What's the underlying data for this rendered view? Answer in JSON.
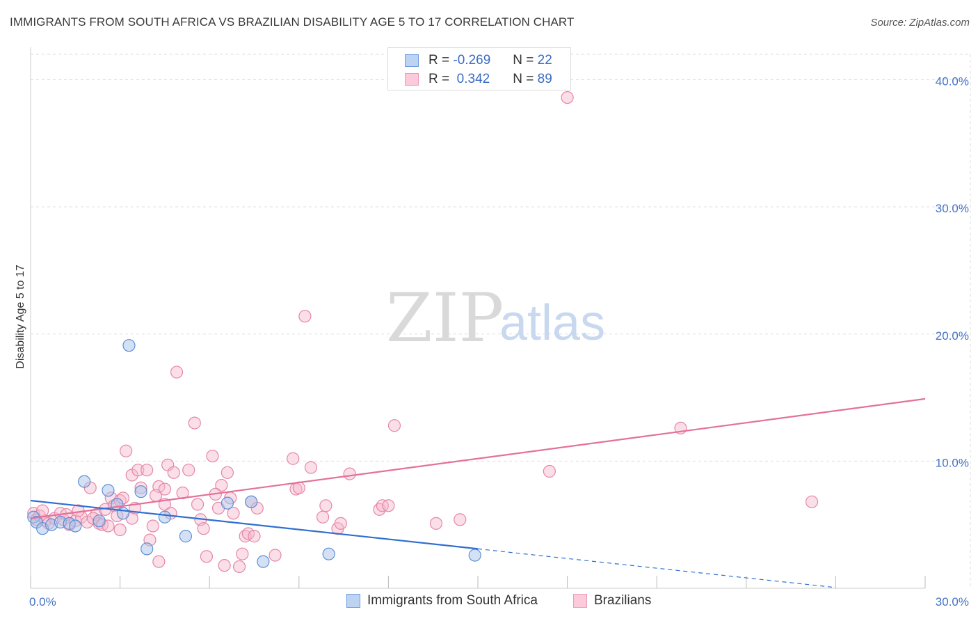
{
  "header": {
    "title": "IMMIGRANTS FROM SOUTH AFRICA VS BRAZILIAN DISABILITY AGE 5 TO 17 CORRELATION CHART",
    "source": "Source: ZipAtlas.com"
  },
  "watermark": {
    "zip": "ZIP",
    "atlas": "atlas"
  },
  "legend": {
    "rows": [
      {
        "r_label": "R =",
        "r_value": "-0.269",
        "n_label": "N =",
        "n_value": "22"
      },
      {
        "r_label": "R =",
        "r_value": " 0.342",
        "n_label": "N =",
        "n_value": "89"
      }
    ]
  },
  "bottom_legend": {
    "series1": "Immigrants from South Africa",
    "series2": "Brazilians"
  },
  "colors": {
    "blue_fill": "#a9c4ec",
    "blue_stroke": "#5b8fd6",
    "blue_line": "#2f6fd0",
    "pink_fill": "#f6b8cc",
    "pink_stroke": "#e586a6",
    "pink_line": "#e4709a",
    "grid": "#dddddd",
    "tick_text": "#4472c4"
  },
  "chart_data": {
    "type": "scatter",
    "title": "IMMIGRANTS FROM SOUTH AFRICA VS BRAZILIAN DISABILITY AGE 5 TO 17 CORRELATION CHART",
    "xlabel": "",
    "ylabel": "Disability Age 5 to 17",
    "xlim": [
      0,
      30
    ],
    "ylim": [
      0,
      42
    ],
    "x_tick_labels": [
      {
        "value": 0,
        "label": "0.0%"
      },
      {
        "value": 30,
        "label": "30.0%"
      }
    ],
    "y_tick_labels": [
      {
        "value": 10,
        "label": "10.0%"
      },
      {
        "value": 20,
        "label": "20.0%"
      },
      {
        "value": 30,
        "label": "30.0%"
      },
      {
        "value": 40,
        "label": "40.0%"
      }
    ],
    "series": [
      {
        "name": "Immigrants from South Africa",
        "color": "blue",
        "points": [
          [
            0.1,
            5.6
          ],
          [
            0.2,
            5.2
          ],
          [
            0.4,
            4.7
          ],
          [
            0.7,
            5.0
          ],
          [
            1.0,
            5.2
          ],
          [
            1.3,
            5.1
          ],
          [
            1.5,
            4.9
          ],
          [
            1.8,
            8.4
          ],
          [
            2.3,
            5.3
          ],
          [
            2.6,
            7.7
          ],
          [
            2.9,
            6.6
          ],
          [
            3.1,
            5.9
          ],
          [
            3.3,
            19.1
          ],
          [
            3.7,
            7.6
          ],
          [
            3.9,
            3.1
          ],
          [
            4.5,
            5.6
          ],
          [
            5.2,
            4.1
          ],
          [
            6.6,
            6.7
          ],
          [
            7.4,
            6.8
          ],
          [
            7.8,
            2.1
          ],
          [
            10.0,
            2.7
          ],
          [
            14.9,
            2.6
          ]
        ],
        "trend_solid": [
          [
            0,
            6.9
          ],
          [
            15.0,
            3.1
          ]
        ],
        "trend_dashed": [
          [
            15.0,
            3.1
          ],
          [
            30.0,
            -0.7
          ]
        ]
      },
      {
        "name": "Brazilians",
        "color": "pink",
        "points": [
          [
            0.1,
            5.9
          ],
          [
            0.2,
            5.4
          ],
          [
            0.3,
            5.7
          ],
          [
            0.5,
            5.3
          ],
          [
            0.6,
            5.1
          ],
          [
            0.8,
            5.5
          ],
          [
            1.0,
            5.9
          ],
          [
            1.1,
            5.4
          ],
          [
            1.3,
            5.0
          ],
          [
            1.5,
            5.3
          ],
          [
            1.7,
            5.6
          ],
          [
            1.9,
            5.2
          ],
          [
            2.0,
            7.9
          ],
          [
            2.2,
            5.8
          ],
          [
            2.3,
            5.1
          ],
          [
            2.4,
            5.0
          ],
          [
            2.5,
            6.2
          ],
          [
            2.6,
            4.9
          ],
          [
            2.7,
            7.1
          ],
          [
            2.8,
            6.5
          ],
          [
            3.0,
            6.9
          ],
          [
            3.0,
            4.6
          ],
          [
            3.1,
            7.1
          ],
          [
            3.2,
            10.8
          ],
          [
            3.4,
            5.5
          ],
          [
            3.4,
            8.9
          ],
          [
            3.6,
            9.3
          ],
          [
            3.7,
            7.9
          ],
          [
            3.9,
            9.3
          ],
          [
            4.0,
            3.8
          ],
          [
            4.1,
            4.9
          ],
          [
            4.3,
            8.0
          ],
          [
            4.3,
            2.1
          ],
          [
            4.5,
            6.6
          ],
          [
            4.5,
            7.8
          ],
          [
            4.6,
            9.7
          ],
          [
            4.8,
            9.1
          ],
          [
            4.9,
            17.0
          ],
          [
            5.1,
            7.5
          ],
          [
            5.3,
            9.3
          ],
          [
            5.5,
            13.0
          ],
          [
            5.7,
            5.4
          ],
          [
            5.8,
            4.7
          ],
          [
            5.9,
            2.5
          ],
          [
            6.1,
            10.4
          ],
          [
            6.3,
            6.3
          ],
          [
            6.4,
            8.1
          ],
          [
            6.5,
            1.8
          ],
          [
            6.6,
            9.1
          ],
          [
            6.7,
            7.1
          ],
          [
            7.0,
            1.7
          ],
          [
            7.1,
            2.7
          ],
          [
            7.2,
            4.1
          ],
          [
            7.3,
            4.3
          ],
          [
            7.4,
            6.8
          ],
          [
            7.5,
            4.1
          ],
          [
            8.2,
            2.6
          ],
          [
            8.8,
            10.2
          ],
          [
            8.9,
            7.8
          ],
          [
            9.0,
            7.9
          ],
          [
            9.2,
            21.4
          ],
          [
            9.4,
            9.5
          ],
          [
            9.8,
            5.6
          ],
          [
            9.9,
            6.5
          ],
          [
            10.3,
            4.7
          ],
          [
            10.4,
            5.1
          ],
          [
            10.7,
            9.0
          ],
          [
            11.7,
            6.2
          ],
          [
            11.8,
            6.5
          ],
          [
            12.0,
            6.5
          ],
          [
            12.2,
            12.8
          ],
          [
            13.6,
            5.1
          ],
          [
            14.4,
            5.4
          ],
          [
            17.4,
            9.2
          ],
          [
            18.0,
            38.6
          ],
          [
            21.8,
            12.6
          ],
          [
            26.2,
            6.8
          ],
          [
            0.4,
            6.1
          ],
          [
            1.2,
            5.8
          ],
          [
            1.6,
            6.1
          ],
          [
            2.1,
            5.5
          ],
          [
            2.9,
            5.7
          ],
          [
            3.5,
            6.3
          ],
          [
            4.2,
            7.3
          ],
          [
            4.7,
            5.9
          ],
          [
            5.6,
            6.6
          ],
          [
            6.2,
            7.4
          ],
          [
            6.8,
            5.9
          ],
          [
            7.6,
            6.3
          ]
        ],
        "trend_solid": [
          [
            0,
            5.5
          ],
          [
            30.0,
            14.9
          ]
        ]
      }
    ]
  }
}
